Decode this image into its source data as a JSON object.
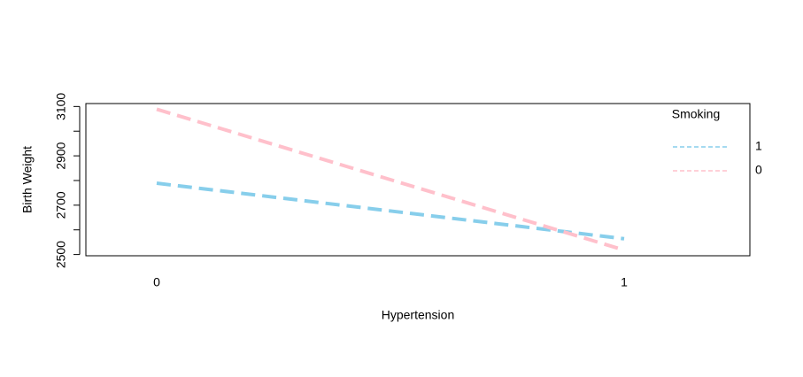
{
  "chart_data": {
    "type": "line",
    "x_label": "Hypertension",
    "y_label": "Birth Weight",
    "categories": [
      "0",
      "1"
    ],
    "series": [
      {
        "name": "1",
        "color": "#87ceeb",
        "values": [
          2789,
          2564
        ]
      },
      {
        "name": "0",
        "color": "#ffc0cb",
        "values": [
          3089,
          2518
        ]
      }
    ],
    "ylim": [
      2495,
      3112
    ],
    "yticks": [
      2500,
      2700,
      2900,
      3100
    ],
    "yminorticks": [
      2600,
      2800,
      3000
    ],
    "legend_title": "Smoking",
    "legend_position": "right"
  }
}
